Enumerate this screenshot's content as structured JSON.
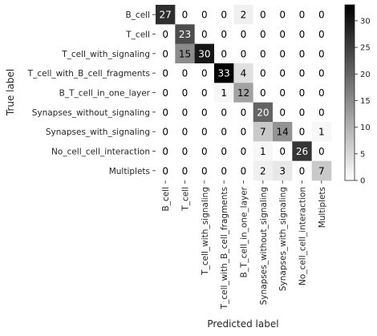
{
  "chart_data": {
    "type": "heatmap",
    "title": "",
    "xlabel": "Predicted label",
    "ylabel": "True label",
    "categories": [
      "B_cell",
      "T_cell",
      "T_cell_with_signaling",
      "T_cell_with_B_cell_fragments",
      "B_T_cell_in_one_layer",
      "Synapses_without_signaling",
      "Synapses_with_signaling",
      "No_cell_cell_interaction",
      "Multiplets"
    ],
    "matrix": [
      [
        27,
        0,
        0,
        0,
        2,
        0,
        0,
        0,
        0
      ],
      [
        0,
        23,
        0,
        0,
        0,
        0,
        0,
        0,
        0
      ],
      [
        0,
        15,
        30,
        0,
        0,
        0,
        0,
        0,
        0
      ],
      [
        0,
        0,
        0,
        33,
        4,
        0,
        0,
        0,
        0
      ],
      [
        0,
        0,
        0,
        1,
        12,
        0,
        0,
        0,
        0
      ],
      [
        0,
        0,
        0,
        0,
        0,
        20,
        0,
        0,
        0
      ],
      [
        0,
        0,
        0,
        0,
        0,
        7,
        14,
        0,
        1
      ],
      [
        0,
        0,
        0,
        0,
        0,
        1,
        0,
        26,
        0
      ],
      [
        0,
        0,
        0,
        0,
        0,
        2,
        3,
        0,
        7
      ]
    ],
    "colormap": "greys",
    "vmin": 0,
    "vmax": 33,
    "colorbar_ticks": [
      0,
      5,
      10,
      15,
      20,
      25,
      30
    ],
    "colors": {
      "low": "#ffffff",
      "high": "#000000",
      "text_dark": "#000000",
      "text_light": "#ffffff"
    }
  }
}
